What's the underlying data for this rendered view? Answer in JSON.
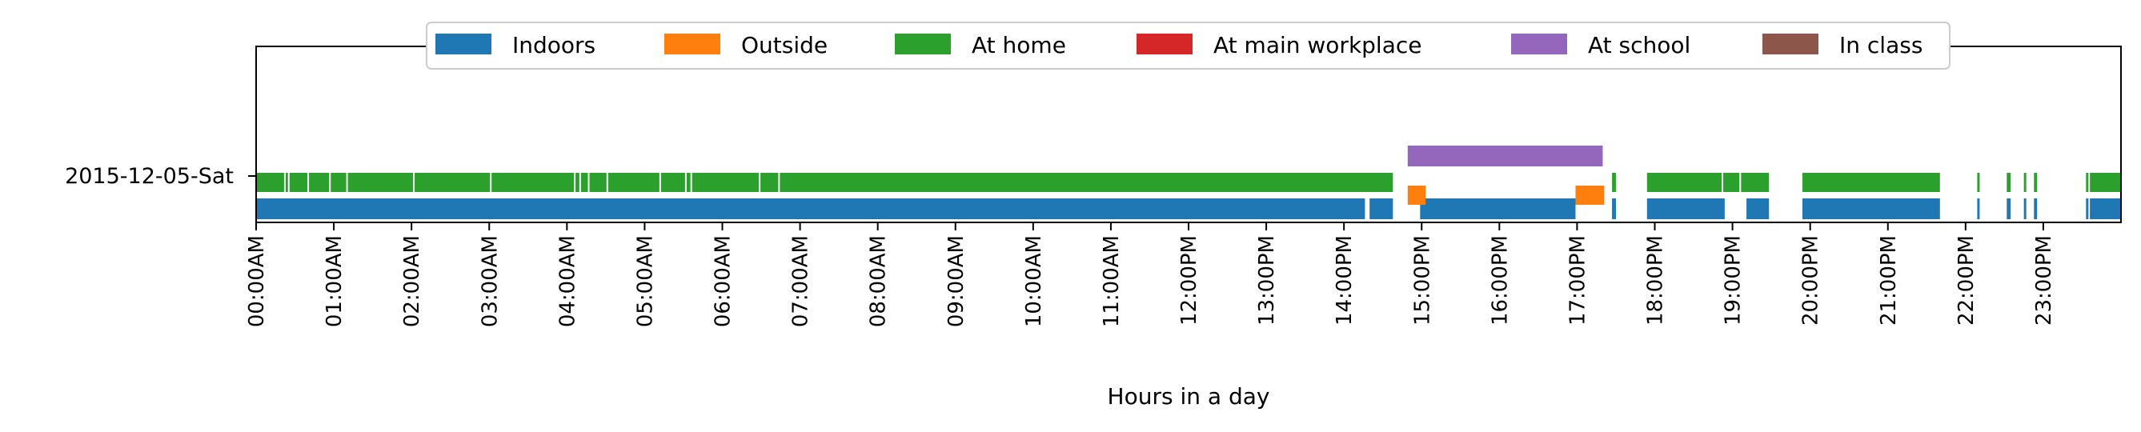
{
  "chart_data": {
    "type": "timeline",
    "xlabel": "Hours in a day",
    "ylabel": "",
    "xlim": [
      0,
      24
    ],
    "x_ticks": [
      0,
      1,
      2,
      3,
      4,
      5,
      6,
      7,
      8,
      9,
      10,
      11,
      12,
      13,
      14,
      15,
      16,
      17,
      18,
      19,
      20,
      21,
      22,
      23
    ],
    "x_tick_labels": [
      "00:00AM",
      "01:00AM",
      "02:00AM",
      "03:00AM",
      "04:00AM",
      "05:00AM",
      "06:00AM",
      "07:00AM",
      "08:00AM",
      "09:00AM",
      "10:00AM",
      "11:00AM",
      "12:00PM",
      "13:00PM",
      "14:00PM",
      "15:00PM",
      "16:00PM",
      "17:00PM",
      "18:00PM",
      "19:00PM",
      "20:00PM",
      "21:00PM",
      "22:00PM",
      "23:00PM"
    ],
    "y_tick_labels": [
      "2015-12-05-Sat"
    ],
    "legend_position": "top-center",
    "grid": false,
    "series": [
      {
        "name": "Indoors",
        "color": "#1f77b4",
        "lane": 0,
        "intervals": [
          [
            0,
            14.27
          ],
          [
            14.33,
            14.63
          ],
          [
            14.98,
            16.98
          ],
          [
            17.45,
            17.5
          ],
          [
            17.9,
            18.9
          ],
          [
            19.18,
            19.47
          ],
          [
            19.9,
            21.67
          ],
          [
            22.15,
            22.18
          ],
          [
            22.53,
            22.58
          ],
          [
            22.75,
            22.78
          ],
          [
            22.88,
            22.92
          ],
          [
            23.55,
            23.58
          ],
          [
            23.6,
            24
          ]
        ]
      },
      {
        "name": "Outside",
        "color": "#ff7f0e",
        "lane": 1,
        "intervals": [
          [
            14.82,
            15.05
          ],
          [
            16.98,
            17.35
          ]
        ]
      },
      {
        "name": "At home",
        "color": "#2ca02c",
        "lane": 2,
        "intervals": [
          [
            0,
            14.63
          ],
          [
            17.45,
            17.5
          ],
          [
            17.9,
            19.47
          ],
          [
            19.9,
            21.67
          ],
          [
            22.15,
            22.18
          ],
          [
            22.53,
            22.58
          ],
          [
            22.75,
            22.78
          ],
          [
            22.88,
            22.92
          ],
          [
            23.55,
            23.58
          ],
          [
            23.6,
            24
          ]
        ]
      },
      {
        "name": "At main workplace",
        "color": "#d62728",
        "lane": 3,
        "intervals": []
      },
      {
        "name": "At school",
        "color": "#9467bd",
        "lane": 4,
        "intervals": [
          [
            14.82,
            17.33
          ]
        ]
      },
      {
        "name": "In class",
        "color": "#8c564b",
        "lane": 5,
        "intervals": []
      }
    ],
    "gaps_in_at_home": [
      0.37,
      0.42,
      0.67,
      0.95,
      1.17,
      2.03,
      3.02,
      4.1,
      4.17,
      4.28,
      4.52,
      5.2,
      5.53,
      5.6,
      6.48,
      6.73,
      18.87,
      19.1
    ]
  }
}
